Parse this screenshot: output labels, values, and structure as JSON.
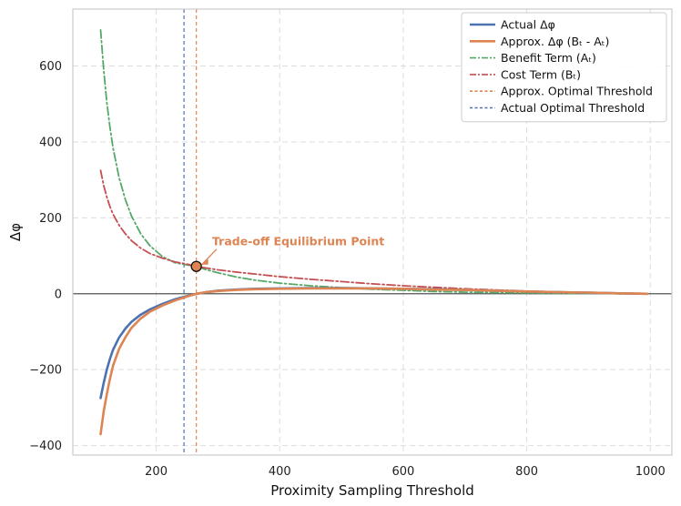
{
  "chart_data": {
    "type": "line",
    "title": "",
    "xlabel": "Proximity Sampling Threshold",
    "ylabel": "Δφ",
    "xlim": [
      65,
      1035
    ],
    "ylim": [
      -425,
      750
    ],
    "xticks": [
      200,
      400,
      600,
      800,
      1000
    ],
    "yticks": [
      -400,
      -200,
      0,
      200,
      400,
      600
    ],
    "ytick_labels": [
      "−400",
      "−200",
      "0",
      "200",
      "400",
      "600"
    ],
    "grid": true,
    "legend_position": "top-right",
    "series": [
      {
        "name": "Actual Δφ",
        "style": "solid",
        "color": "#4c72b0",
        "x": [
          110,
          115,
          120,
          125,
          130,
          140,
          150,
          160,
          175,
          190,
          210,
          230,
          245,
          260,
          280,
          300,
          330,
          360,
          400,
          450,
          500,
          550,
          600,
          650,
          700,
          750,
          800,
          850,
          900,
          950,
          995
        ],
        "y": [
          -275,
          -235,
          -200,
          -172,
          -148,
          -115,
          -92,
          -74,
          -55,
          -41,
          -27,
          -15,
          -8,
          -2,
          4,
          8,
          11,
          13,
          14,
          15,
          15,
          14,
          13,
          12,
          10,
          8,
          6,
          4,
          3,
          1,
          0
        ]
      },
      {
        "name": "Approx. Δφ (Bₜ - Aₜ)",
        "style": "solid",
        "color": "#dd8452",
        "x": [
          110,
          115,
          120,
          125,
          130,
          140,
          150,
          160,
          175,
          190,
          210,
          230,
          245,
          265,
          280,
          300,
          330,
          360,
          400,
          450,
          500,
          550,
          600,
          650,
          700,
          750,
          800,
          850,
          900,
          950,
          995
        ],
        "y": [
          -370,
          -310,
          -265,
          -225,
          -190,
          -145,
          -115,
          -90,
          -65,
          -47,
          -31,
          -18,
          -10,
          0,
          4,
          7,
          10,
          12,
          13,
          14,
          14,
          14,
          13,
          11,
          10,
          8,
          6,
          4,
          3,
          1,
          0
        ]
      },
      {
        "name": "Benefit Term (Aₜ)",
        "style": "dashdot",
        "color": "#55a868",
        "x": [
          110,
          115,
          120,
          125,
          130,
          140,
          150,
          160,
          175,
          190,
          210,
          230,
          250,
          265,
          280,
          300,
          330,
          360,
          400,
          450,
          500,
          550,
          600,
          650,
          700,
          750,
          800,
          850,
          900,
          950,
          995
        ],
        "y": [
          695,
          590,
          505,
          440,
          385,
          305,
          248,
          205,
          158,
          126,
          98,
          82,
          76,
          72,
          64,
          55,
          44,
          36,
          28,
          21,
          16,
          12,
          9,
          6,
          4,
          3,
          2,
          1,
          1,
          0,
          0
        ]
      },
      {
        "name": "Cost Term (Bₜ)",
        "style": "dashdot",
        "color": "#c44e52",
        "x": [
          110,
          115,
          120,
          125,
          130,
          140,
          150,
          160,
          175,
          190,
          210,
          230,
          250,
          265,
          280,
          300,
          330,
          360,
          400,
          450,
          500,
          550,
          600,
          650,
          700,
          750,
          800,
          850,
          900,
          950,
          995
        ],
        "y": [
          325,
          285,
          255,
          230,
          210,
          180,
          158,
          140,
          120,
          106,
          94,
          84,
          78,
          72,
          68,
          63,
          57,
          52,
          45,
          38,
          32,
          26,
          21,
          17,
          13,
          10,
          7,
          5,
          3,
          1,
          0
        ]
      }
    ],
    "vlines": [
      {
        "name": "Approx. Optimal Threshold",
        "x": 265,
        "color": "#dd8452",
        "style": "dashed"
      },
      {
        "name": "Actual Optimal Threshold",
        "x": 245,
        "color": "#4c72b0",
        "style": "dashed"
      }
    ],
    "hline": {
      "y": 0,
      "color": "#555555"
    },
    "equilibrium_point": {
      "x": 265,
      "y": 72,
      "color": "#dd8452"
    },
    "annotation": {
      "text": "Trade-off Equilibrium Point",
      "x": 295,
      "y": 125,
      "color": "#dd8452"
    },
    "legend": [
      {
        "label": "Actual Δφ",
        "color": "#4c72b0",
        "style": "solid"
      },
      {
        "label": "Approx. Δφ (Bₜ - Aₜ)",
        "color": "#dd8452",
        "style": "solid"
      },
      {
        "label": "Benefit Term (Aₜ)",
        "color": "#55a868",
        "style": "dashdot"
      },
      {
        "label": "Cost Term (Bₜ)",
        "color": "#c44e52",
        "style": "dashdot"
      },
      {
        "label": "Approx. Optimal Threshold",
        "color": "#dd8452",
        "style": "dashed"
      },
      {
        "label": "Actual Optimal Threshold",
        "color": "#4c72b0",
        "style": "dashed"
      }
    ]
  }
}
